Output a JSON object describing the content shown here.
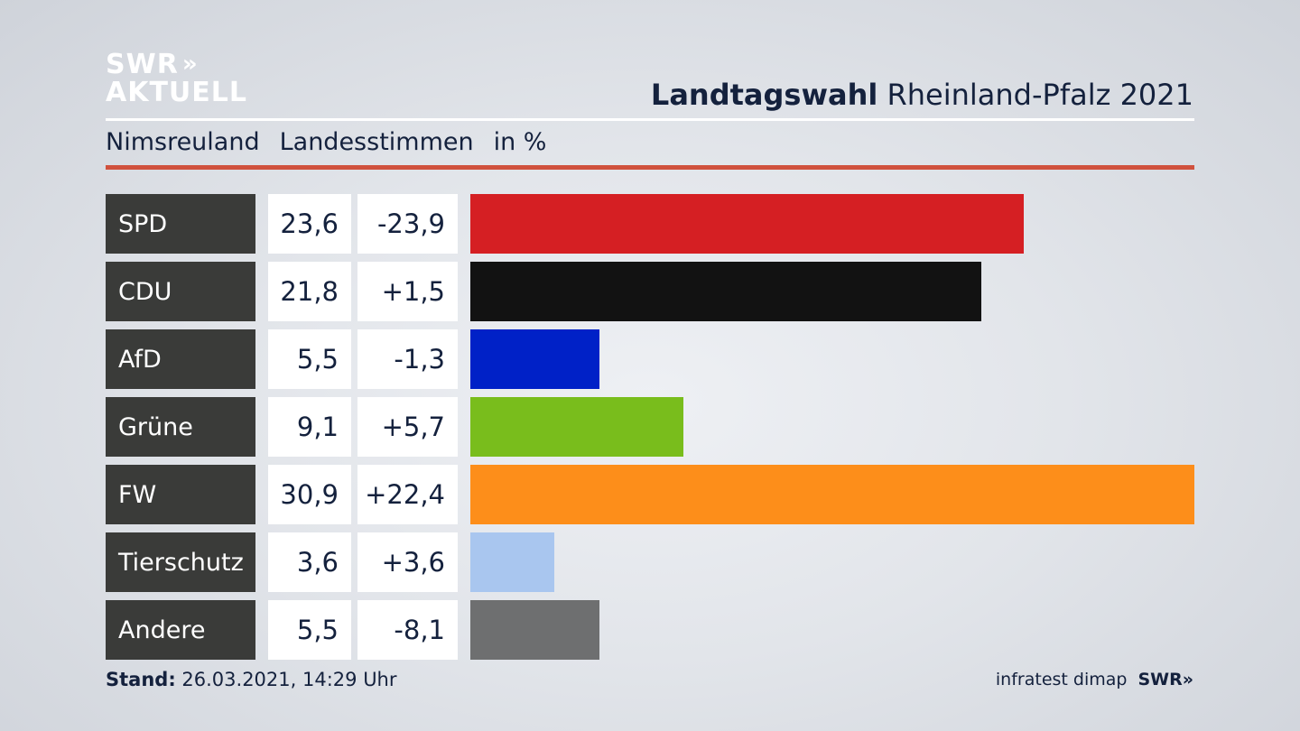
{
  "logo": {
    "line1": "SWR",
    "chevrons": "»",
    "line2": "AKTUELL"
  },
  "header": {
    "title_bold": "Landtagswahl",
    "title_rest": "Rheinland-Pfalz 2021"
  },
  "subheader": {
    "place": "Nimsreuland",
    "kind": "Landesstimmen",
    "unit": "in %"
  },
  "footer": {
    "stand_label": "Stand:",
    "stand_value": "26.03.2021, 14:29 Uhr",
    "source": "infratest dimap",
    "brand": "SWR»"
  },
  "chart_data": {
    "type": "bar",
    "orientation": "horizontal",
    "categories": [
      "SPD",
      "CDU",
      "AfD",
      "Grüne",
      "FW",
      "Tierschutz",
      "Andere"
    ],
    "values": [
      23.6,
      21.8,
      5.5,
      9.1,
      30.9,
      3.6,
      5.5
    ],
    "value_labels": [
      "23,6",
      "21,8",
      "5,5",
      "9,1",
      "30,9",
      "3,6",
      "5,5"
    ],
    "diffs": [
      "-23,9",
      "+1,5",
      "-1,3",
      "+5,7",
      "+22,4",
      "+3,6",
      "-8,1"
    ],
    "colors": [
      "#d51f23",
      "#121212",
      "#0021c7",
      "#79bd1c",
      "#fd8e1a",
      "#a9c6ef",
      "#6e6f70"
    ],
    "xlim": [
      0,
      30.9
    ],
    "grid": false
  }
}
